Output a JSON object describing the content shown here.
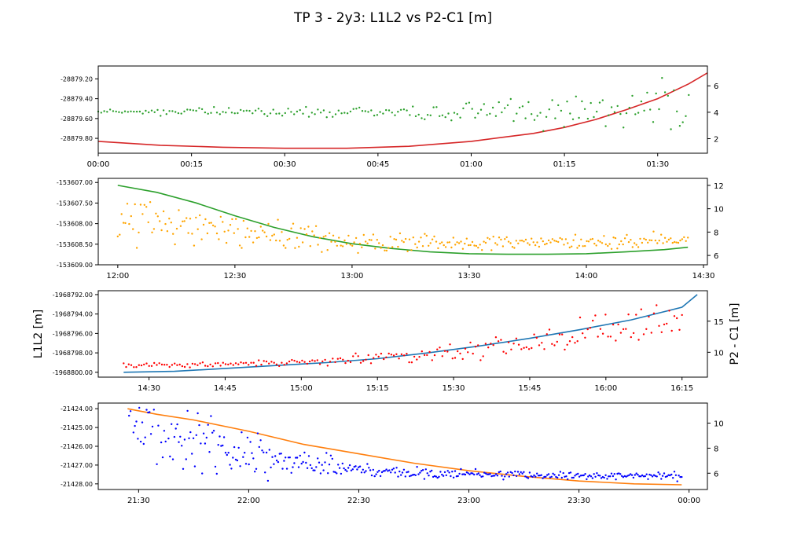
{
  "figure": {
    "title": "TP 3 - 2y3:   L1L2 vs P2-C1 [m]",
    "left_ylabel": "L1L2 [m]",
    "right_ylabel": "P2 - C1 [m]"
  },
  "chart_data": [
    {
      "type": "line",
      "panel": 1,
      "x_kind": "time",
      "xlim": [
        "00:00",
        "01:38"
      ],
      "x_ticks": [
        "00:00",
        "00:15",
        "00:30",
        "00:45",
        "01:00",
        "01:15",
        "01:30"
      ],
      "ylim_left": [
        -28879.95,
        -28879.07
      ],
      "ylim_right": [
        0.9,
        7.5
      ],
      "y_ticks_left": [
        "-28879.20",
        "-28879.40",
        "-28879.60",
        "-28879.80"
      ],
      "y_ticks_right": [
        "2",
        "4",
        "6"
      ],
      "series": [
        {
          "axis": "left",
          "style": "line",
          "color": "#d62728",
          "x": [
            "00:00",
            "00:10",
            "00:20",
            "00:30",
            "00:40",
            "00:50",
            "01:00",
            "01:05",
            "01:10",
            "01:15",
            "01:20",
            "01:25",
            "01:30",
            "01:35",
            "01:38"
          ],
          "y": [
            -28879.83,
            -28879.87,
            -28879.89,
            -28879.9,
            -28879.9,
            -28879.88,
            -28879.83,
            -28879.79,
            -28879.75,
            -28879.69,
            -28879.61,
            -28879.51,
            -28879.4,
            -28879.25,
            -28879.14
          ]
        },
        {
          "axis": "right",
          "style": "scatter",
          "color": "#2ca02c",
          "x": [
            "00:00",
            "00:05",
            "00:10",
            "00:15",
            "00:20",
            "00:25",
            "00:30",
            "00:35",
            "00:40",
            "00:45",
            "00:50",
            "00:55",
            "01:00",
            "01:05",
            "01:10",
            "01:15",
            "01:20",
            "01:25",
            "01:30",
            "01:35"
          ],
          "y": [
            4.0,
            4.1,
            4.0,
            4.1,
            4.0,
            4.0,
            3.9,
            4.0,
            4.0,
            4.0,
            3.9,
            3.9,
            4.0,
            4.2,
            4.0,
            4.1,
            4.3,
            4.4,
            4.5,
            4.6
          ],
          "spread": [
            0.15,
            0.15,
            0.2,
            0.2,
            0.2,
            0.2,
            0.25,
            0.3,
            0.3,
            0.3,
            0.35,
            0.4,
            0.5,
            0.6,
            0.8,
            0.9,
            1.1,
            1.2,
            1.3,
            1.4
          ],
          "count": 200
        }
      ]
    },
    {
      "type": "line",
      "panel": 2,
      "x_kind": "time",
      "xlim": [
        "11:55",
        "14:31"
      ],
      "x_ticks": [
        "12:00",
        "12:30",
        "13:00",
        "13:30",
        "14:00",
        "14:30"
      ],
      "ylim_left": [
        -153609.0,
        -153606.9
      ],
      "ylim_right": [
        5.2,
        12.6
      ],
      "y_ticks_left": [
        "-153607.00",
        "-153607.50",
        "-153608.00",
        "-153608.50",
        "-153609.00"
      ],
      "y_ticks_right": [
        "6",
        "8",
        "10",
        "12"
      ],
      "series": [
        {
          "axis": "right",
          "style": "line",
          "color": "#2ca02c",
          "x": [
            "12:00",
            "12:10",
            "12:20",
            "12:30",
            "12:40",
            "12:50",
            "13:00",
            "13:10",
            "13:20",
            "13:30",
            "13:40",
            "13:50",
            "14:00",
            "14:10",
            "14:20",
            "14:26"
          ],
          "y": [
            12.0,
            11.4,
            10.5,
            9.4,
            8.4,
            7.6,
            7.0,
            6.6,
            6.3,
            6.15,
            6.1,
            6.1,
            6.15,
            6.3,
            6.5,
            6.7
          ]
        },
        {
          "axis": "right",
          "style": "scatter",
          "color": "#ffa500",
          "x": [
            "12:00",
            "12:10",
            "12:20",
            "12:30",
            "12:40",
            "12:50",
            "13:00",
            "13:10",
            "13:20",
            "13:30",
            "13:40",
            "13:50",
            "14:00",
            "14:10",
            "14:20",
            "14:26"
          ],
          "y": [
            8.8,
            8.4,
            8.0,
            7.9,
            7.6,
            7.3,
            7.2,
            7.1,
            7.1,
            7.0,
            7.0,
            7.1,
            7.1,
            7.2,
            7.3,
            7.4
          ],
          "spread": [
            1.7,
            1.6,
            1.4,
            1.2,
            1.0,
            0.8,
            0.6,
            0.5,
            0.45,
            0.4,
            0.4,
            0.4,
            0.4,
            0.4,
            0.4,
            0.4
          ],
          "count": 300
        }
      ]
    },
    {
      "type": "line",
      "panel": 3,
      "x_kind": "time",
      "xlim": [
        "14:20",
        "16:20"
      ],
      "x_ticks": [
        "14:30",
        "14:45",
        "15:00",
        "15:15",
        "15:30",
        "15:45",
        "16:00",
        "16:15"
      ],
      "ylim_left": [
        -1968800.5,
        -1968791.6
      ],
      "ylim_right": [
        6.0,
        19.9
      ],
      "y_ticks_left": [
        "-1968792.00",
        "-1968794.00",
        "-1968796.00",
        "-1968798.00",
        "-1968800.00"
      ],
      "y_ticks_right": [
        "10",
        "15"
      ],
      "series": [
        {
          "axis": "left",
          "style": "line",
          "color": "#1f77b4",
          "x": [
            "14:25",
            "14:35",
            "14:45",
            "14:55",
            "15:05",
            "15:15",
            "15:25",
            "15:35",
            "15:45",
            "15:55",
            "16:05",
            "16:15",
            "16:18"
          ],
          "y": [
            -1968800.0,
            -1968799.9,
            -1968799.6,
            -1968799.3,
            -1968799.0,
            -1968798.6,
            -1968798.0,
            -1968797.3,
            -1968796.5,
            -1968795.6,
            -1968794.6,
            -1968793.3,
            -1968792.0
          ]
        },
        {
          "axis": "right",
          "style": "scatter",
          "color": "#ff0000",
          "x": [
            "14:25",
            "14:35",
            "14:45",
            "14:55",
            "15:05",
            "15:15",
            "15:25",
            "15:35",
            "15:45",
            "15:55",
            "16:05",
            "16:15"
          ],
          "y": [
            7.9,
            8.0,
            8.1,
            8.3,
            8.6,
            9.0,
            9.5,
            10.5,
            11.5,
            12.8,
            14.3,
            15.5
          ],
          "spread": [
            0.3,
            0.3,
            0.3,
            0.4,
            0.5,
            0.6,
            0.8,
            1.2,
            1.5,
            1.8,
            2.0,
            2.3
          ],
          "count": 220
        }
      ]
    },
    {
      "type": "line",
      "panel": 4,
      "x_kind": "time",
      "xlim": [
        "21:19",
        "00:05"
      ],
      "x_ticks": [
        "21:30",
        "22:00",
        "22:30",
        "23:00",
        "23:30",
        "00:00"
      ],
      "ylim_left": [
        -21428.3,
        -21423.7
      ],
      "ylim_right": [
        4.7,
        11.6
      ],
      "y_ticks_left": [
        "-21424.00",
        "-21425.00",
        "-21426.00",
        "-21427.00",
        "-21428.00"
      ],
      "y_ticks_right": [
        "6",
        "8",
        "10"
      ],
      "series": [
        {
          "axis": "left",
          "style": "line",
          "color": "#ff7f0e",
          "x": [
            "21:27",
            "21:35",
            "21:45",
            "22:00",
            "22:15",
            "22:30",
            "22:45",
            "23:00",
            "23:15",
            "23:30",
            "23:45",
            "23:58"
          ],
          "y": [
            -21424.0,
            -21424.3,
            -21424.6,
            -21425.2,
            -21425.9,
            -21426.4,
            -21426.9,
            -21427.3,
            -21427.6,
            -21427.85,
            -21428.0,
            -21428.05
          ]
        },
        {
          "axis": "right",
          "style": "scatter",
          "color": "#0000ff",
          "x": [
            "21:27",
            "21:35",
            "21:45",
            "22:00",
            "22:15",
            "22:30",
            "22:45",
            "23:00",
            "23:15",
            "23:30",
            "23:45",
            "23:58"
          ],
          "y": [
            10.5,
            9.0,
            8.2,
            7.5,
            6.7,
            6.3,
            6.0,
            5.9,
            5.85,
            5.8,
            5.8,
            5.8
          ],
          "spread": [
            1.0,
            2.5,
            1.8,
            1.2,
            0.7,
            0.45,
            0.3,
            0.25,
            0.2,
            0.2,
            0.2,
            0.25
          ],
          "count": 380
        }
      ]
    }
  ]
}
